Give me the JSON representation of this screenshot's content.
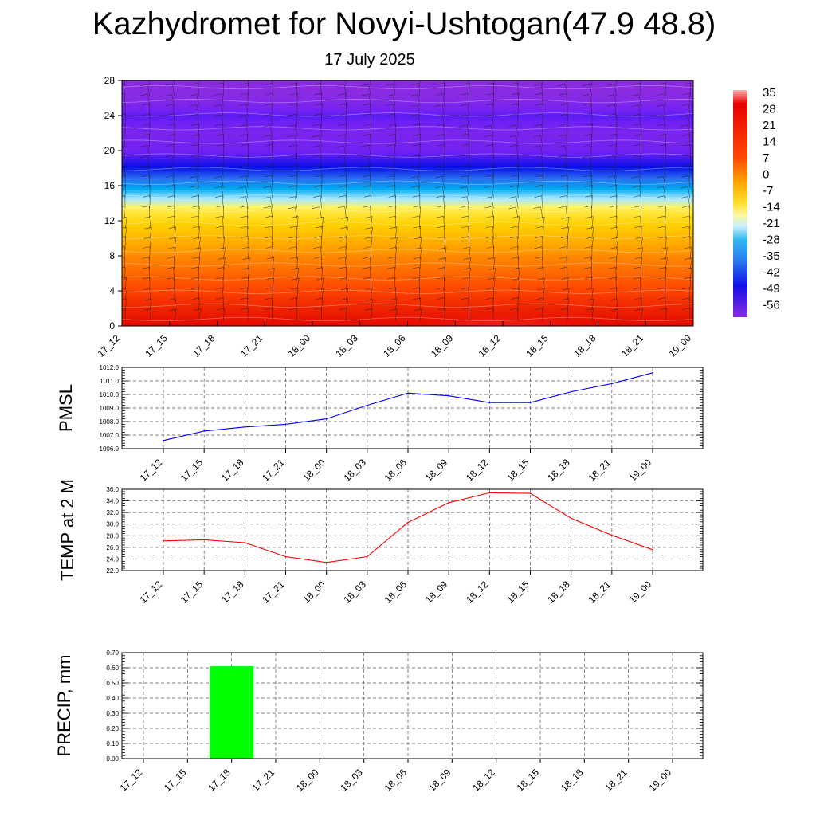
{
  "header": {
    "title": "Kazhydromet for Novyi-Ushtogan(47.9 48.8)",
    "date": "17 July 2025"
  },
  "time_labels": [
    "17_12",
    "17_15",
    "17_18",
    "17_21",
    "18_00",
    "18_03",
    "18_06",
    "18_09",
    "18_12",
    "18_15",
    "18_18",
    "18_21",
    "19_00"
  ],
  "chart_data": [
    {
      "type": "heatmap",
      "title": "",
      "x": [
        "17_12",
        "17_15",
        "17_18",
        "17_21",
        "18_00",
        "18_03",
        "18_06",
        "18_09",
        "18_12",
        "18_15",
        "18_18",
        "18_21",
        "19_00"
      ],
      "y_ticks": [
        0,
        4,
        8,
        12,
        16,
        20,
        24,
        28
      ],
      "ylim": [
        0,
        28
      ],
      "colorbar": {
        "labels": [
          "35",
          "28",
          "21",
          "14",
          "7",
          "0",
          "-7",
          "-14",
          "-21",
          "-28",
          "-35",
          "-42",
          "-49",
          "-56"
        ],
        "range": [
          -63,
          35
        ]
      },
      "profile": {
        "heights": [
          0,
          2,
          4,
          6,
          8,
          10,
          12,
          13.5,
          14,
          16,
          18,
          20,
          22,
          24,
          26,
          28
        ],
        "values": [
          25,
          22,
          18,
          14,
          10,
          4,
          -2,
          -8,
          -14,
          -30,
          -44,
          -55,
          -58,
          -52,
          -62,
          -64
        ]
      },
      "hot_spot": {
        "x_center": "18_12",
        "height_top": 5,
        "max_value": 35
      },
      "wind_barbs": true,
      "colors": [
        "#ff5a5a",
        "#e00000",
        "#ff4a00",
        "#ff9900",
        "#ffd000",
        "#fff566",
        "#a8e8ff",
        "#00aaf0",
        "#2a6cf0",
        "#0a10e8",
        "#7020f5",
        "#8a2be2"
      ]
    },
    {
      "type": "line",
      "ylabel": "PMSL",
      "x": [
        "17_12",
        "17_15",
        "17_18",
        "17_21",
        "18_00",
        "18_03",
        "18_06",
        "18_09",
        "18_12",
        "18_15",
        "18_18",
        "18_21",
        "19_00"
      ],
      "series": [
        {
          "values": [
            1006.6,
            1007.3,
            1007.6,
            1007.8,
            1008.2,
            1009.2,
            1010.1,
            1009.9,
            1009.4,
            1009.4,
            1010.2,
            1010.8,
            1011.6
          ],
          "color": "#0000ff"
        }
      ],
      "yticks": [
        "1006.0",
        "1007.0",
        "1008.0",
        "1009.0",
        "1010.0",
        "1011.0",
        "1012.0"
      ],
      "ylim": [
        1006,
        1012
      ],
      "grid": true
    },
    {
      "type": "line",
      "ylabel": "TEMP at 2 M",
      "x": [
        "17_12",
        "17_15",
        "17_18",
        "17_21",
        "18_00",
        "18_03",
        "18_06",
        "18_09",
        "18_12",
        "18_15",
        "18_18",
        "18_21",
        "19_00"
      ],
      "series": [
        {
          "values": [
            27.1,
            27.3,
            26.8,
            24.4,
            23.4,
            24.4,
            30.3,
            33.7,
            35.4,
            35.3,
            31.0,
            28.1,
            25.6
          ],
          "color": "#ff0000"
        }
      ],
      "yticks": [
        "22.0",
        "24.0",
        "26.0",
        "28.0",
        "30.0",
        "32.0",
        "34.0",
        "36.0"
      ],
      "ylim": [
        22,
        36
      ],
      "grid": true
    },
    {
      "type": "bar",
      "ylabel": "PRECIP, mm",
      "categories": [
        "17_12",
        "17_15",
        "17_18",
        "17_21",
        "18_00",
        "18_03",
        "18_06",
        "18_09",
        "18_12",
        "18_15",
        "18_18",
        "18_21",
        "19_00"
      ],
      "values": [
        0,
        0,
        0.61,
        0,
        0,
        0,
        0,
        0,
        0,
        0,
        0,
        0,
        0
      ],
      "color": "#00ff00",
      "yticks": [
        "0.00",
        "0.10",
        "0.20",
        "0.30",
        "0.40",
        "0.50",
        "0.60",
        "0.70"
      ],
      "ylim": [
        0,
        0.7
      ],
      "grid": true
    }
  ]
}
